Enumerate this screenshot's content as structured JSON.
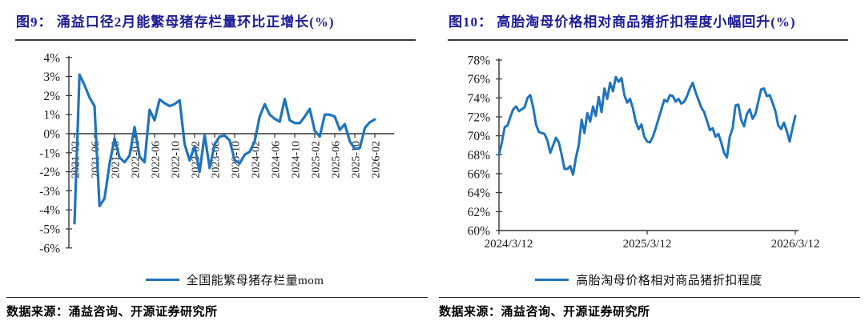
{
  "colors": {
    "series_line": "#1f74be",
    "title_text": "#1c1c99",
    "axis": "#333333"
  },
  "chart_data": [
    {
      "type": "line",
      "title": "图9： 涌益口径2月能繁母猪存栏量环比正增长(%)",
      "series_name": "全国能繁母猪存栏量mom",
      "source": "数据来源：涌益咨询、开源证券研究所",
      "x_freq": "monthly",
      "x_start": "2021-02",
      "x_end": "2026-02",
      "x_tick_labels": [
        "2021-02",
        "2021-06",
        "2021-10",
        "2022-02",
        "2022-06",
        "2022-10",
        "2023-02",
        "2023-06",
        "2023-10",
        "2024-02",
        "2024-06",
        "2024-10",
        "2025-02",
        "2025-06",
        "2025-10",
        "2026-02"
      ],
      "y_tick_labels": [
        "4%",
        "3%",
        "2%",
        "1%",
        "0%",
        "-1%",
        "-2%",
        "-3%",
        "-4%",
        "-5%",
        "-6%"
      ],
      "ylim": [
        -6,
        4
      ],
      "x_axis_position": "zero",
      "legend_position": "bottom",
      "grid": false,
      "values": [
        -4.7,
        3.1,
        2.55,
        1.9,
        1.45,
        -3.8,
        -3.4,
        -1.6,
        -0.25,
        -1.25,
        -1.5,
        -1.15,
        0.35,
        -1.2,
        -1.5,
        1.25,
        0.7,
        1.8,
        1.6,
        1.45,
        1.55,
        1.75,
        -0.55,
        -1.4,
        -0.65,
        -2.0,
        -0.05,
        -1.8,
        -0.55,
        -0.15,
        -0.1,
        -0.35,
        -1.4,
        -1.55,
        -1.1,
        -0.95,
        -0.4,
        0.9,
        1.55,
        1.0,
        0.78,
        0.63,
        1.82,
        0.7,
        0.56,
        0.55,
        0.9,
        1.3,
        0.15,
        -0.15,
        1.0,
        1.0,
        0.9,
        0.2,
        0.5,
        -0.4,
        -0.8,
        -0.75,
        0.3,
        0.6,
        0.75
      ]
    },
    {
      "type": "line",
      "title": "图10： 高胎淘母价格相对商品猪折扣程度小幅回升(%)",
      "series_name": "高胎淘母价格相对商品猪折扣程度",
      "source": "数据来源：涌益咨询、开源证券研究所",
      "x_freq": "weekly",
      "x_start": "2024/3/12",
      "x_end": "2026/3/12",
      "x_tick_labels": [
        "2024/3/12",
        "2025/3/12",
        "2026/3/12"
      ],
      "y_tick_labels": [
        "78%",
        "76%",
        "74%",
        "72%",
        "70%",
        "68%",
        "66%",
        "64%",
        "62%",
        "60%"
      ],
      "ylim": [
        60,
        78
      ],
      "x_axis_position": "bottom",
      "legend_position": "bottom",
      "grid": false,
      "values": [
        68.0,
        69.3,
        70.9,
        71.1,
        72.0,
        72.8,
        73.1,
        72.6,
        72.8,
        73.0,
        74.0,
        74.3,
        73.0,
        71.2,
        70.4,
        70.3,
        70.2,
        69.5,
        68.2,
        69.0,
        69.8,
        69.3,
        68.0,
        66.5,
        66.5,
        66.8,
        65.9,
        67.7,
        69.0,
        71.7,
        70.3,
        72.4,
        71.5,
        73.1,
        72.1,
        74.1,
        72.5,
        75.0,
        73.9,
        75.6,
        74.7,
        76.2,
        75.7,
        76.1,
        74.3,
        73.5,
        73.9,
        72.9,
        71.5,
        70.7,
        71.2,
        69.9,
        69.4,
        69.3,
        69.9,
        70.8,
        71.8,
        72.8,
        73.8,
        73.6,
        74.3,
        74.2,
        73.6,
        73.9,
        73.4,
        73.6,
        74.2,
        75.0,
        75.6,
        74.6,
        73.8,
        73.0,
        72.5,
        71.6,
        70.6,
        70.8,
        69.9,
        70.2,
        69.3,
        68.2,
        67.7,
        69.9,
        70.8,
        73.2,
        73.3,
        71.7,
        71.0,
        72.3,
        72.8,
        71.8,
        72.3,
        73.6,
        74.9,
        75.0,
        74.2,
        74.3,
        73.5,
        72.6,
        71.1,
        70.7,
        71.4,
        70.5,
        69.4,
        70.8,
        72.1
      ]
    }
  ]
}
